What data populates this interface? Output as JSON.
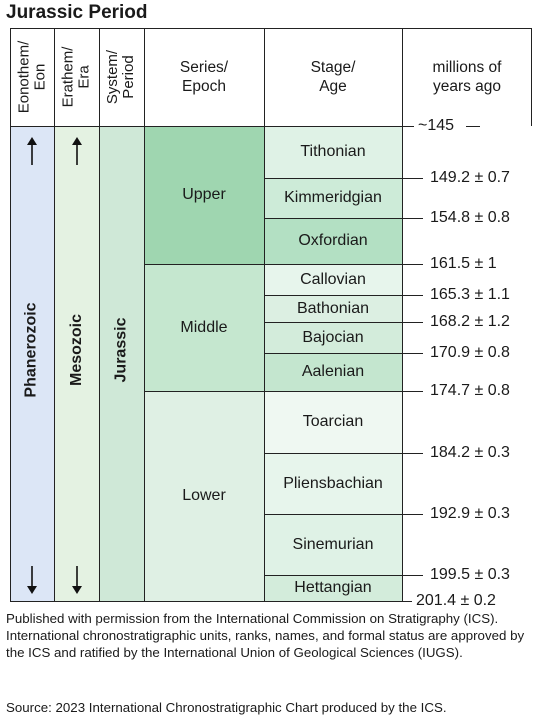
{
  "title": "Jurassic Period",
  "headers": {
    "eonothem": [
      "Eonothem/",
      "Eon"
    ],
    "erathem": [
      "Erathem/",
      "Era"
    ],
    "system": [
      "System/",
      "Period"
    ],
    "series": [
      "Series/",
      "Epoch"
    ],
    "stage": [
      "Stage/",
      "Age"
    ],
    "age": [
      "millions of",
      "years ago"
    ]
  },
  "eon": "Phanerozoic",
  "era": "Mesozoic",
  "period": "Jurassic",
  "epochs": [
    "Upper",
    "Middle",
    "Lower"
  ],
  "stages": [
    "Tithonian",
    "Kimmeridgian",
    "Oxfordian",
    "Callovian",
    "Bathonian",
    "Bajocian",
    "Aalenian",
    "Toarcian",
    "Pliensbachian",
    "Sinemurian",
    "Hettangian"
  ],
  "boundaries": [
    "~145",
    "149.2 ± 0.7",
    "154.8 ± 0.8",
    "161.5 ± 1",
    "165.3 ± 1.1",
    "168.2 ± 1.2",
    "170.9 ± 0.8",
    "174.7 ± 0.8",
    "184.2 ± 0.3",
    "192.9 ± 0.3",
    "199.5 ± 0.3",
    "201.4 ± 0.2"
  ],
  "note": "Published with permission from the International Commission on Stratigraphy (ICS). International chronostratigraphic units, ranks, names, and formal status are approved by the ICS and ratified by the International Union of Geological Sciences (IUGS).",
  "source": "Source: 2023 International Chronostratigraphic Chart produced by the ICS.",
  "colors": {
    "eon": "#dce6f6",
    "era": "#e4f2e2",
    "period": "#cfe8d7",
    "upper": "#9fd6b0",
    "middle": "#c5e7cf",
    "lower": "#dff0e4",
    "stage_tithonian": "#dff2e6",
    "stage_kimmeridgian": "#cdebd8",
    "stage_oxfordian": "#b3e0c3",
    "stage_callovian": "#e7f5ec",
    "stage_bathonian": "#dcefe2",
    "stage_bajocian": "#d3ecdb",
    "stage_aalenian": "#c4e6cf",
    "stage_toarcian": "#eff8f2",
    "stage_pliensbachian": "#e7f5ec",
    "stage_sinemurian": "#dff2e6",
    "stage_hettangian": "#d3ecdb"
  }
}
